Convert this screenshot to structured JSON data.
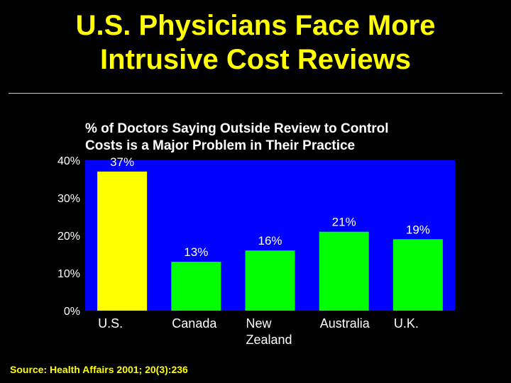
{
  "slide": {
    "title_line1": "U.S. Physicians Face More",
    "title_line2": "Intrusive Cost Reviews",
    "source": "Source: Health Affairs 2001; 20(3):236"
  },
  "chart_data": {
    "type": "bar",
    "title_line1": "% of Doctors Saying Outside Review to Control",
    "title_line2": "Costs is a Major Problem in Their Practice",
    "categories": [
      [
        "U.S."
      ],
      [
        "Canada"
      ],
      [
        "New",
        "Zealand"
      ],
      [
        "Australia"
      ],
      [
        "U.K."
      ]
    ],
    "values": [
      37,
      13,
      16,
      21,
      19
    ],
    "data_labels": [
      "37%",
      "13%",
      "16%",
      "21%",
      "19%"
    ],
    "bar_colors": [
      "#ffff00",
      "#00ff00",
      "#00ff00",
      "#00ff00",
      "#00ff00"
    ],
    "plot_background": "#0000ff",
    "ylim": [
      0,
      40
    ],
    "yticks": [
      0,
      10,
      20,
      30,
      40
    ],
    "ytick_labels": [
      "0%",
      "10%",
      "20%",
      "30%",
      "40%"
    ],
    "grid": false,
    "xlabel": "",
    "ylabel": ""
  }
}
